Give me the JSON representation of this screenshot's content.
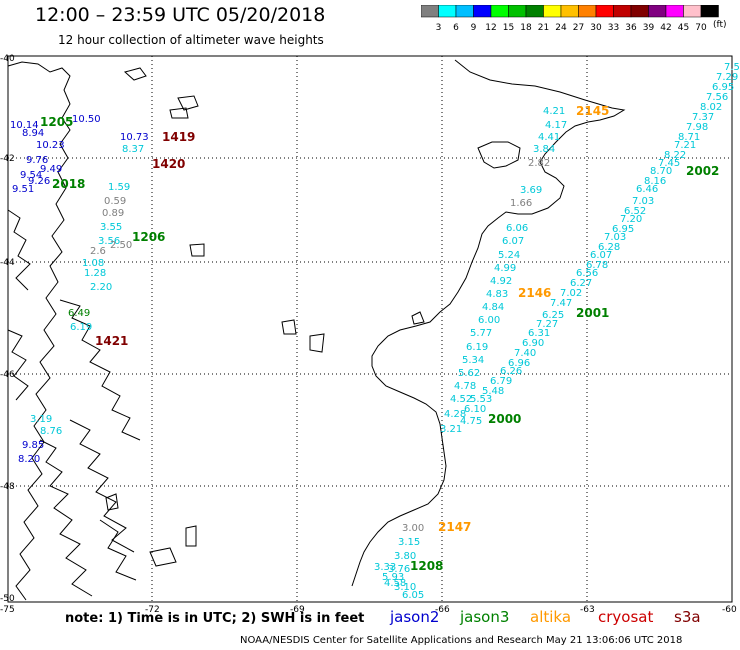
{
  "header": {
    "title": "12:00 – 23:59 UTC 05/20/2018",
    "subtitle": "12 hour collection of altimeter wave heights"
  },
  "colorbar": {
    "unit": "(ft)",
    "ticks": [
      "3",
      "6",
      "9",
      "12",
      "15",
      "18",
      "21",
      "24",
      "27",
      "30",
      "33",
      "36",
      "39",
      "42",
      "45",
      "70"
    ],
    "colors": [
      "#808080",
      "#00ffff",
      "#00bfff",
      "#0000ff",
      "#00ff00",
      "#00c000",
      "#008000",
      "#ffff00",
      "#ffc000",
      "#ff8000",
      "#ff0000",
      "#c00000",
      "#800000",
      "#800080",
      "#ff00ff",
      "#ffc0cb",
      "#000000"
    ]
  },
  "axes": {
    "lat_labels": [
      "-40",
      "-42",
      "-44",
      "-46",
      "-48",
      "-50"
    ],
    "lon_labels": [
      "-75",
      "-72",
      "-69",
      "-66",
      "-63",
      "-60"
    ]
  },
  "colors": {
    "jason2": "#0000cd",
    "jason3": "#008000",
    "altika": "#ff9900",
    "cryosat": "#cc0000",
    "s3a": "#800000",
    "cyan": "#00c8d8",
    "gray": "#808080",
    "green_label": "#008000",
    "orange_label": "#ff9900",
    "darkred_label": "#800000"
  },
  "pass_labels": [
    {
      "text": "2145",
      "color": "orange_label"
    },
    {
      "text": "2002",
      "color": "green_label"
    },
    {
      "text": "2146",
      "color": "orange_label"
    },
    {
      "text": "2001",
      "color": "green_label"
    },
    {
      "text": "2000",
      "color": "green_label"
    },
    {
      "text": "2147",
      "color": "orange_label"
    },
    {
      "text": "1208",
      "color": "green_label"
    },
    {
      "text": "1419",
      "color": "darkred_label"
    },
    {
      "text": "1420",
      "color": "darkred_label"
    },
    {
      "text": "1206",
      "color": "green_label"
    },
    {
      "text": "1421",
      "color": "darkred_label"
    },
    {
      "text": "1205",
      "color": "green_label"
    },
    {
      "text": "2018",
      "color": "green_label"
    }
  ],
  "wave_values": [
    {
      "text": "4.21",
      "color": "cyan"
    },
    {
      "text": "4.17",
      "color": "cyan"
    },
    {
      "text": "4.41",
      "color": "cyan"
    },
    {
      "text": "3.84",
      "color": "cyan"
    },
    {
      "text": "2.82",
      "color": "gray"
    },
    {
      "text": "3.69",
      "color": "cyan"
    },
    {
      "text": "1.66",
      "color": "gray"
    },
    {
      "text": "6.06",
      "color": "cyan"
    },
    {
      "text": "6.07",
      "color": "cyan"
    },
    {
      "text": "5.24",
      "color": "cyan"
    },
    {
      "text": "4.99",
      "color": "cyan"
    },
    {
      "text": "4.92",
      "color": "cyan"
    },
    {
      "text": "4.83",
      "color": "cyan"
    },
    {
      "text": "4.84",
      "color": "cyan"
    },
    {
      "text": "6.00",
      "color": "cyan"
    },
    {
      "text": "5.77",
      "color": "cyan"
    },
    {
      "text": "6.19",
      "color": "cyan"
    },
    {
      "text": "5.34",
      "color": "cyan"
    },
    {
      "text": "5.62",
      "color": "cyan"
    },
    {
      "text": "4.78",
      "color": "cyan"
    },
    {
      "text": "4.52",
      "color": "cyan"
    },
    {
      "text": "5.53",
      "color": "cyan"
    },
    {
      "text": "4.28",
      "color": "cyan"
    },
    {
      "text": "6.10",
      "color": "cyan"
    },
    {
      "text": "4.75",
      "color": "cyan"
    },
    {
      "text": "3.21",
      "color": "cyan"
    },
    {
      "text": "7.5",
      "color": "cyan"
    },
    {
      "text": "7.29",
      "color": "cyan"
    },
    {
      "text": "6.95",
      "color": "cyan"
    },
    {
      "text": "7.56",
      "color": "cyan"
    },
    {
      "text": "8.02",
      "color": "cyan"
    },
    {
      "text": "7.37",
      "color": "cyan"
    },
    {
      "text": "7.98",
      "color": "cyan"
    },
    {
      "text": "8.71",
      "color": "cyan"
    },
    {
      "text": "7.21",
      "color": "cyan"
    },
    {
      "text": "8.22",
      "color": "cyan"
    },
    {
      "text": "7.45",
      "color": "cyan"
    },
    {
      "text": "8.70",
      "color": "cyan"
    },
    {
      "text": "8.16",
      "color": "cyan"
    },
    {
      "text": "6.46",
      "color": "cyan"
    },
    {
      "text": "7.03",
      "color": "cyan"
    },
    {
      "text": "6.52",
      "color": "cyan"
    },
    {
      "text": "7.20",
      "color": "cyan"
    },
    {
      "text": "6.95",
      "color": "cyan"
    },
    {
      "text": "7.03",
      "color": "cyan"
    },
    {
      "text": "6.28",
      "color": "cyan"
    },
    {
      "text": "6.07",
      "color": "cyan"
    },
    {
      "text": "6.78",
      "color": "cyan"
    },
    {
      "text": "6.56",
      "color": "cyan"
    },
    {
      "text": "6.27",
      "color": "cyan"
    },
    {
      "text": "7.02",
      "color": "cyan"
    },
    {
      "text": "7.47",
      "color": "cyan"
    },
    {
      "text": "6.25",
      "color": "cyan"
    },
    {
      "text": "7.27",
      "color": "cyan"
    },
    {
      "text": "6.31",
      "color": "cyan"
    },
    {
      "text": "6.90",
      "color": "cyan"
    },
    {
      "text": "7.40",
      "color": "cyan"
    },
    {
      "text": "6.96",
      "color": "cyan"
    },
    {
      "text": "6.26",
      "color": "cyan"
    },
    {
      "text": "6.79",
      "color": "cyan"
    },
    {
      "text": "5.48",
      "color": "cyan"
    },
    {
      "text": "3.00",
      "color": "gray"
    },
    {
      "text": "3.15",
      "color": "cyan"
    },
    {
      "text": "3.80",
      "color": "cyan"
    },
    {
      "text": "3.33",
      "color": "cyan"
    },
    {
      "text": "3.76",
      "color": "cyan"
    },
    {
      "text": "5.93",
      "color": "cyan"
    },
    {
      "text": "4.58",
      "color": "cyan"
    },
    {
      "text": "3.10",
      "color": "cyan"
    },
    {
      "text": "6.05",
      "color": "cyan"
    },
    {
      "text": "10.14",
      "color": "jason2"
    },
    {
      "text": "8.94",
      "color": "jason2"
    },
    {
      "text": "10.50",
      "color": "jason2"
    },
    {
      "text": "10.23",
      "color": "jason2"
    },
    {
      "text": "9.76",
      "color": "jason2"
    },
    {
      "text": "10.73",
      "color": "jason2"
    },
    {
      "text": "8.37",
      "color": "cyan"
    },
    {
      "text": "9.54",
      "color": "jason2"
    },
    {
      "text": "9.49",
      "color": "jason2"
    },
    {
      "text": "9.51",
      "color": "jason2"
    },
    {
      "text": "9.26",
      "color": "jason2"
    },
    {
      "text": "1.59",
      "color": "cyan"
    },
    {
      "text": "0.59",
      "color": "gray"
    },
    {
      "text": "0.89",
      "color": "gray"
    },
    {
      "text": "3.55",
      "color": "cyan"
    },
    {
      "text": "3.56",
      "color": "cyan"
    },
    {
      "text": "2.50",
      "color": "gray"
    },
    {
      "text": "2.6",
      "color": "gray"
    },
    {
      "text": "1.08",
      "color": "cyan"
    },
    {
      "text": "1.28",
      "color": "cyan"
    },
    {
      "text": "2.20",
      "color": "cyan"
    },
    {
      "text": "6.49",
      "color": "jason3"
    },
    {
      "text": "6.19",
      "color": "cyan"
    },
    {
      "text": "3.19",
      "color": "cyan"
    },
    {
      "text": "8.76",
      "color": "cyan"
    },
    {
      "text": "9.85",
      "color": "jason2"
    },
    {
      "text": "8.20",
      "color": "jason2"
    }
  ],
  "footer": {
    "note": "note:  1) Time is in UTC;  2) SWH is in feet",
    "legend": [
      {
        "text": "jason2",
        "color": "jason2"
      },
      {
        "text": "jason3",
        "color": "jason3"
      },
      {
        "text": "altika",
        "color": "altika"
      },
      {
        "text": "cryosat",
        "color": "cryosat"
      },
      {
        "text": "s3a",
        "color": "s3a"
      }
    ],
    "credit": "NOAA/NESDIS Center for Satellite Applications and Research     May 21 13:06:06 UTC 2018"
  }
}
